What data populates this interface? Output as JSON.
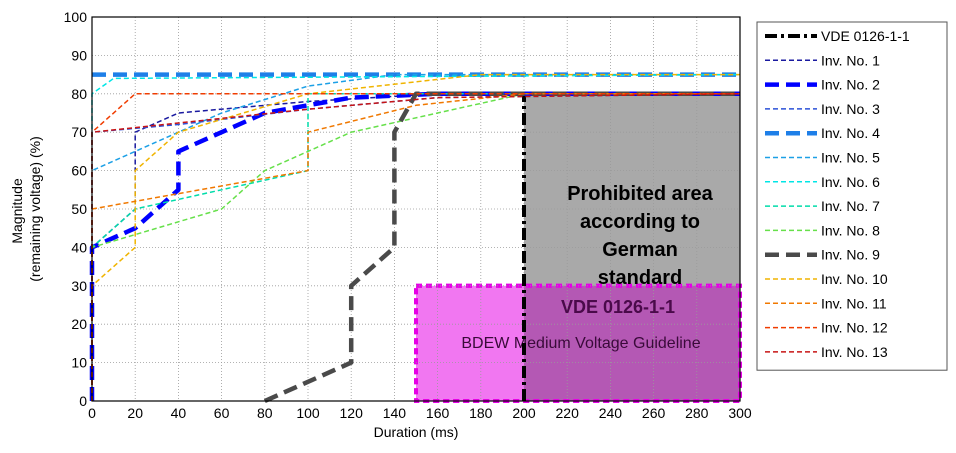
{
  "chart_data": {
    "type": "line",
    "xlabel": "Duration (ms)",
    "ylabel": [
      "Magnitude",
      "(remaining voltage) (%)"
    ],
    "xlim": [
      0,
      300
    ],
    "ylim": [
      0,
      100
    ],
    "x_ticks": [
      0,
      20,
      40,
      60,
      80,
      100,
      120,
      140,
      160,
      180,
      200,
      220,
      240,
      260,
      280,
      300
    ],
    "y_ticks": [
      0,
      10,
      20,
      30,
      40,
      50,
      60,
      70,
      80,
      90,
      100
    ],
    "grid": true,
    "legend_position": "right",
    "regions": [
      {
        "id": "prohibited",
        "label": [
          "Prohibited area",
          "according to",
          "German",
          "standard"
        ],
        "x": [
          200,
          300
        ],
        "y": [
          0,
          80
        ],
        "color": "#a9a9a9"
      },
      {
        "id": "bdew",
        "label": [
          "VDE 0126-1-1",
          "BDEW Medium Voltage Guideline"
        ],
        "x": [
          150,
          300
        ],
        "y": [
          0,
          30
        ],
        "color": "#ee55ee"
      }
    ],
    "series": [
      {
        "name": "VDE 0126-1-1",
        "color": "#000000",
        "style": "dashdot-bold",
        "x": [
          200,
          200,
          300
        ],
        "y": [
          0,
          80,
          80
        ]
      },
      {
        "name": "Inv. No. 1",
        "color": "#1a1aa0",
        "style": "dash",
        "x": [
          0,
          0,
          20,
          20,
          40,
          100,
          160,
          300
        ],
        "y": [
          0,
          40,
          50,
          70,
          75,
          78,
          80,
          80
        ]
      },
      {
        "name": "Inv. No. 2",
        "color": "#0000ff",
        "style": "dash-bold",
        "x": [
          0,
          0,
          20,
          40,
          40,
          80,
          120,
          160,
          300
        ],
        "y": [
          0,
          40,
          45,
          55,
          65,
          75,
          79,
          80,
          80
        ]
      },
      {
        "name": "Inv. No. 3",
        "color": "#2b50d8",
        "style": "dash",
        "x": [
          0,
          0,
          40,
          100,
          160,
          300
        ],
        "y": [
          0,
          70,
          72,
          76,
          79,
          80
        ]
      },
      {
        "name": "Inv. No. 4",
        "color": "#1e7fe8",
        "style": "dash-bold",
        "x": [
          0,
          300
        ],
        "y": [
          85,
          85
        ]
      },
      {
        "name": "Inv. No. 5",
        "color": "#1ca0e6",
        "style": "dash",
        "x": [
          0,
          0,
          20,
          60,
          100,
          140,
          300
        ],
        "y": [
          0,
          60,
          65,
          75,
          82,
          85,
          85
        ]
      },
      {
        "name": "Inv. No. 6",
        "color": "#00e6e6",
        "style": "dash",
        "x": [
          0,
          0,
          10,
          300
        ],
        "y": [
          0,
          80,
          84,
          85
        ]
      },
      {
        "name": "Inv. No. 7",
        "color": "#00dcaa",
        "style": "dash",
        "x": [
          0,
          0,
          20,
          60,
          100,
          100,
          160,
          300
        ],
        "y": [
          0,
          40,
          50,
          55,
          60,
          80,
          80,
          80
        ]
      },
      {
        "name": "Inv. No. 8",
        "color": "#66e04a",
        "style": "dash",
        "x": [
          0,
          0,
          60,
          80,
          120,
          160,
          200,
          300
        ],
        "y": [
          0,
          40,
          50,
          60,
          70,
          75,
          80,
          80
        ]
      },
      {
        "name": "Inv. No. 9",
        "color": "#4a4a4a",
        "style": "dash-bold",
        "x": [
          80,
          120,
          120,
          140,
          140,
          150,
          300
        ],
        "y": [
          0,
          10,
          30,
          40,
          70,
          80,
          80
        ]
      },
      {
        "name": "Inv. No. 10",
        "color": "#f0b400",
        "style": "dash",
        "x": [
          0,
          0,
          20,
          20,
          40,
          100,
          180,
          300
        ],
        "y": [
          0,
          30,
          40,
          60,
          70,
          80,
          85,
          85
        ]
      },
      {
        "name": "Inv. No. 11",
        "color": "#f07800",
        "style": "dash",
        "x": [
          0,
          0,
          100,
          100,
          150,
          200,
          300
        ],
        "y": [
          0,
          50,
          60,
          70,
          77,
          80,
          80
        ]
      },
      {
        "name": "Inv. No. 12",
        "color": "#f03c00",
        "style": "dash",
        "x": [
          0,
          0,
          20,
          300
        ],
        "y": [
          0,
          70,
          80,
          80
        ]
      },
      {
        "name": "Inv. No. 13",
        "color": "#c81414",
        "style": "dash",
        "x": [
          0,
          0,
          100,
          160,
          300
        ],
        "y": [
          0,
          70,
          76,
          79,
          80
        ]
      }
    ]
  }
}
